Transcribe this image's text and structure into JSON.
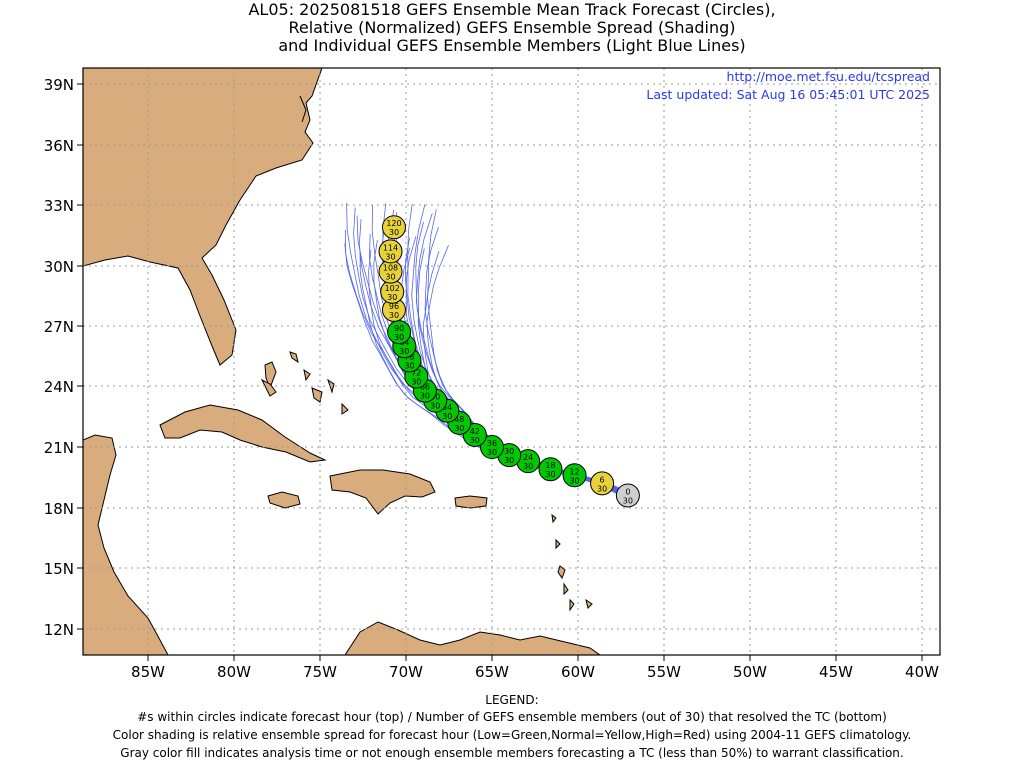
{
  "title": {
    "line1": "AL05: 2025081518 GEFS Ensemble Mean Track Forecast (Circles),",
    "line2": "Relative (Normalized) GEFS Ensemble Spread (Shading)",
    "line3": "and Individual GEFS Ensemble Members (Light Blue Lines)"
  },
  "info": {
    "url": "http://moe.met.fsu.edu/tcspread",
    "updated": "Last updated: Sat Aug 16 05:45:01 UTC 2025"
  },
  "axes": {
    "lat_labels": [
      "39N",
      "36N",
      "33N",
      "30N",
      "27N",
      "24N",
      "21N",
      "18N",
      "15N",
      "12N"
    ],
    "lon_labels": [
      "85W",
      "80W",
      "75W",
      "70W",
      "65W",
      "60W",
      "55W",
      "50W",
      "45W",
      "40W"
    ]
  },
  "colors": {
    "land": "#d8ac7c",
    "member_line": "#5566ee",
    "green": "#00c800",
    "yellow": "#e8d23c",
    "gray": "#cfcfcf"
  },
  "track": [
    {
      "hour": "0",
      "members": "30",
      "lon": -57.1,
      "lat": 18.6,
      "color": "gray"
    },
    {
      "hour": "6",
      "members": "30",
      "lon": -58.6,
      "lat": 19.2,
      "color": "yellow"
    },
    {
      "hour": "12",
      "members": "30",
      "lon": -60.2,
      "lat": 19.6,
      "color": "green"
    },
    {
      "hour": "18",
      "members": "30",
      "lon": -61.6,
      "lat": 19.9,
      "color": "green"
    },
    {
      "hour": "24",
      "members": "30",
      "lon": -62.9,
      "lat": 20.3,
      "color": "green"
    },
    {
      "hour": "30",
      "members": "30",
      "lon": -64.0,
      "lat": 20.6,
      "color": "green"
    },
    {
      "hour": "36",
      "members": "30",
      "lon": -65.0,
      "lat": 21.0,
      "color": "green"
    },
    {
      "hour": "42",
      "members": "30",
      "lon": -66.0,
      "lat": 21.6,
      "color": "green"
    },
    {
      "hour": "48",
      "members": "30",
      "lon": -66.9,
      "lat": 22.2,
      "color": "green"
    },
    {
      "hour": "54",
      "members": "30",
      "lon": -67.6,
      "lat": 22.8,
      "color": "green"
    },
    {
      "hour": "60",
      "members": "30",
      "lon": -68.3,
      "lat": 23.3,
      "color": "green"
    },
    {
      "hour": "66",
      "members": "30",
      "lon": -68.9,
      "lat": 23.8,
      "color": "green"
    },
    {
      "hour": "72",
      "members": "30",
      "lon": -69.4,
      "lat": 24.5,
      "color": "green"
    },
    {
      "hour": "78",
      "members": "30",
      "lon": -69.8,
      "lat": 25.3,
      "color": "green"
    },
    {
      "hour": "84",
      "members": "30",
      "lon": -70.1,
      "lat": 26.0,
      "color": "green"
    },
    {
      "hour": "90",
      "members": "30",
      "lon": -70.4,
      "lat": 26.7,
      "color": "green"
    },
    {
      "hour": "96",
      "members": "30",
      "lon": -70.7,
      "lat": 27.8,
      "color": "yellow"
    },
    {
      "hour": "102",
      "members": "30",
      "lon": -70.8,
      "lat": 28.7,
      "color": "yellow"
    },
    {
      "hour": "108",
      "members": "30",
      "lon": -70.9,
      "lat": 29.7,
      "color": "yellow"
    },
    {
      "hour": "114",
      "members": "30",
      "lon": -70.9,
      "lat": 30.7,
      "color": "yellow"
    },
    {
      "hour": "120",
      "members": "30",
      "lon": -70.7,
      "lat": 31.9,
      "color": "yellow"
    }
  ],
  "legend": {
    "heading": "LEGEND:",
    "line1": "#s within circles indicate forecast hour (top) / Number of GEFS ensemble members (out of 30) that resolved the TC (bottom)",
    "line2": "Color shading is relative ensemble spread for forecast hour (Low=Green,Normal=Yellow,High=Red) using 2004-11 GEFS climatology.",
    "line3": "Gray color fill indicates analysis time or not enough ensemble members forecasting a TC (less than 50%) to warrant classification."
  }
}
